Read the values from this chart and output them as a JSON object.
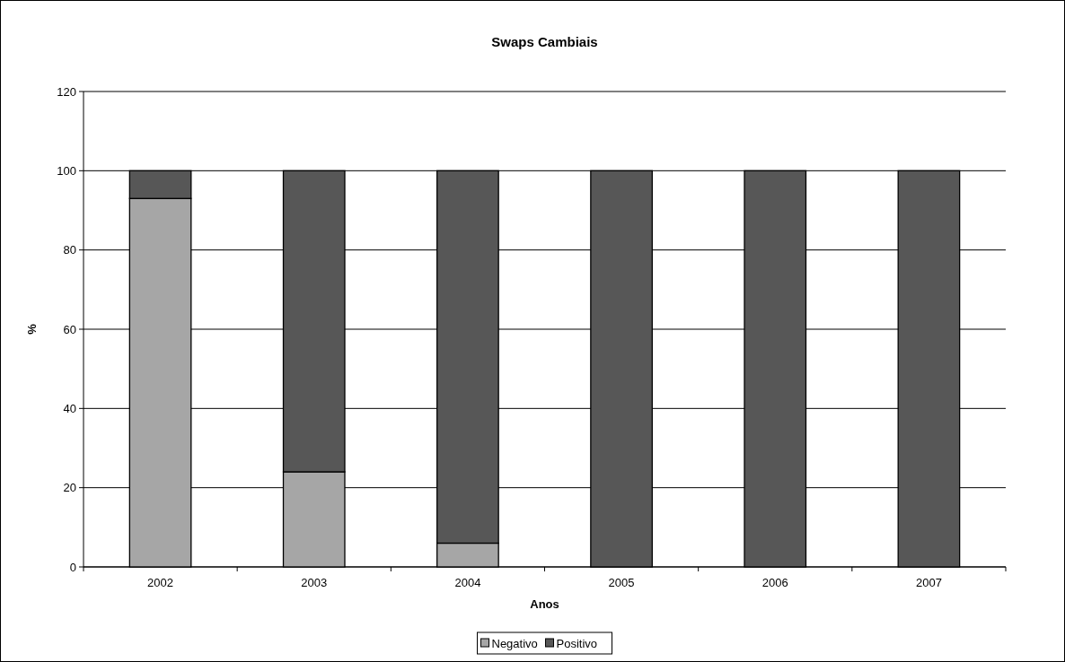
{
  "chart_data": {
    "type": "bar",
    "title": "Swaps Cambiais",
    "xlabel": "Anos",
    "ylabel": "%",
    "categories": [
      "2002",
      "2003",
      "2004",
      "2005",
      "2006",
      "2007"
    ],
    "series": [
      {
        "name": "Negativo",
        "color": "#a6a6a6",
        "values": [
          93,
          24,
          6,
          0,
          0,
          0
        ]
      },
      {
        "name": "Positivo",
        "color": "#575757",
        "values": [
          7,
          76,
          94,
          100,
          100,
          100
        ]
      }
    ],
    "stacked": true,
    "ylim": [
      0,
      120
    ],
    "yticks": [
      0,
      20,
      40,
      60,
      80,
      100,
      120
    ],
    "grid": "y",
    "legend": "bottom"
  }
}
